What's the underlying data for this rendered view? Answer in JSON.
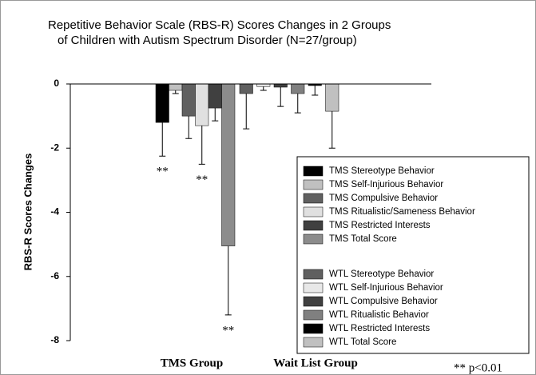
{
  "chart_data": {
    "type": "bar",
    "title": [
      "Repetitive Behavior Scale (RBS-R) Scores Changes in 2 Groups",
      "of Children with Autism Spectrum Disorder (N=27/group)"
    ],
    "ylabel": "RBS-R Scores Changes",
    "categories": [
      "TMS Group",
      "Wait List Group"
    ],
    "ylim": [
      -8,
      0
    ],
    "yticks": [
      0,
      -2,
      -4,
      -6,
      -8
    ],
    "series": [
      {
        "name": "TMS Stereotype Behavior",
        "color": "#000000",
        "values": [
          -1.2,
          null
        ],
        "errors": [
          1.05,
          null
        ]
      },
      {
        "name": "TMS Self-Injurious Behavior",
        "color": "#c0c0c0",
        "values": [
          -0.2,
          null
        ],
        "errors": [
          0.1,
          null
        ]
      },
      {
        "name": "TMS Compulsive Behavior",
        "color": "#606060",
        "values": [
          -1.0,
          null
        ],
        "errors": [
          0.7,
          null
        ]
      },
      {
        "name": "TMS Ritualistic/Sameness Behavior",
        "color": "#e0e0e0",
        "values": [
          -1.3,
          null
        ],
        "errors": [
          1.2,
          null
        ]
      },
      {
        "name": "TMS Restricted Interests",
        "color": "#404040",
        "values": [
          -0.75,
          null
        ],
        "errors": [
          0.4,
          null
        ]
      },
      {
        "name": "TMS Total Score",
        "color": "#8c8c8c",
        "values": [
          -5.05,
          null
        ],
        "errors": [
          2.15,
          null
        ]
      },
      {
        "name": "WTL Stereotype Behavior",
        "color": "#606060",
        "values": [
          null,
          -0.3
        ],
        "errors": [
          null,
          1.1
        ]
      },
      {
        "name": "WTL Self-Injurious Behavior",
        "color": "#e8e8e8",
        "values": [
          null,
          -0.08
        ],
        "errors": [
          null,
          0.12
        ]
      },
      {
        "name": "WTL Compulsive Behavior",
        "color": "#404040",
        "values": [
          null,
          -0.1
        ],
        "errors": [
          null,
          0.6
        ]
      },
      {
        "name": "WTL Ritualistic Behavior",
        "color": "#808080",
        "values": [
          null,
          -0.3
        ],
        "errors": [
          null,
          0.6
        ]
      },
      {
        "name": "WTL Restricted Interests",
        "color": "#000000",
        "values": [
          null,
          -0.05
        ],
        "errors": [
          null,
          0.3
        ]
      },
      {
        "name": "WTL Total Score",
        "color": "#c0c0c0",
        "values": [
          null,
          -0.85
        ],
        "errors": [
          null,
          1.15
        ]
      }
    ],
    "annotations": [
      "**",
      "**",
      "**"
    ],
    "note": "** p<0.01"
  }
}
